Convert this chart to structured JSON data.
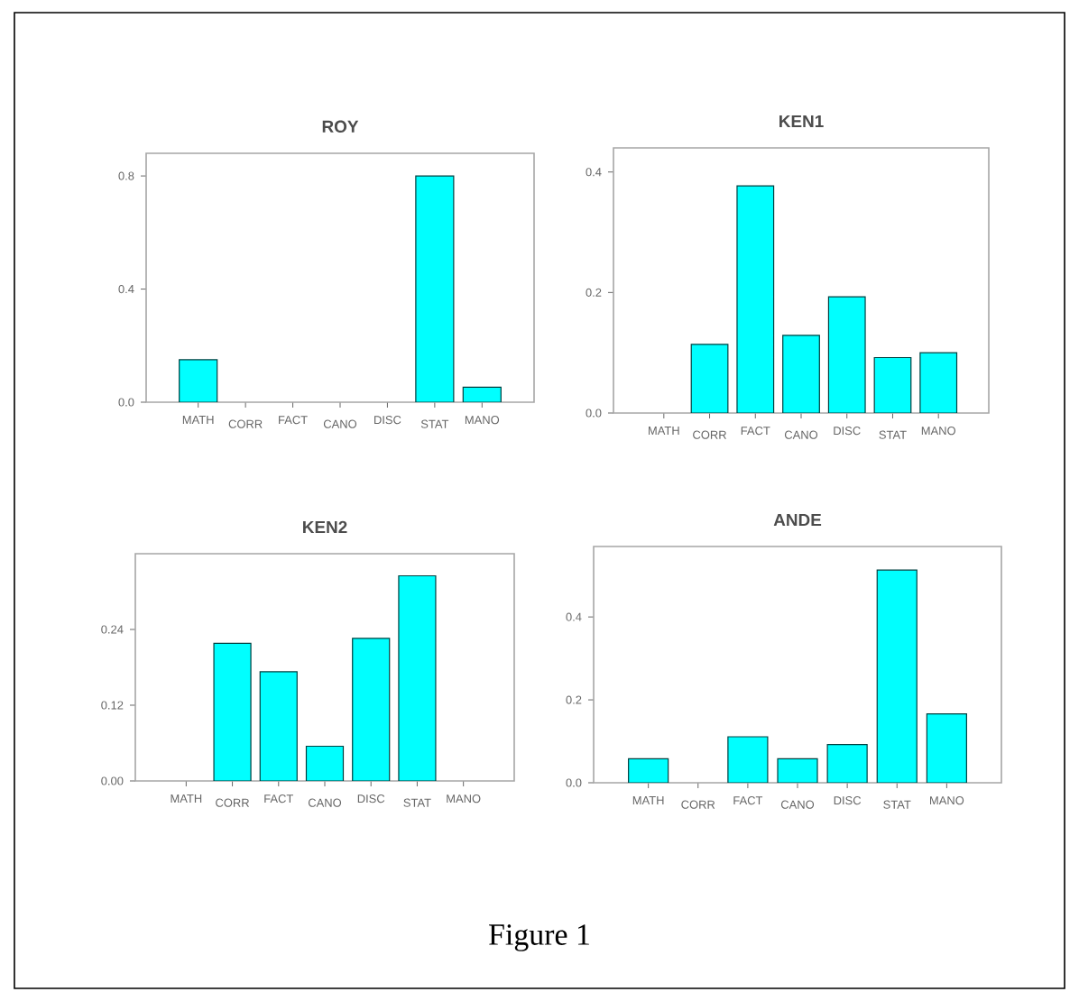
{
  "chart_data": [
    {
      "type": "bar",
      "title": "ROY",
      "categories": [
        "MATH",
        "CORR",
        "FACT",
        "CANO",
        "DISC",
        "STAT",
        "MANO"
      ],
      "values": [
        0.15,
        0,
        0,
        0,
        0,
        0.8,
        0.053
      ],
      "color": "#00ffff",
      "ylim": [
        0,
        0.88
      ],
      "yticks": [
        {
          "value": 0,
          "label": "0.0"
        },
        {
          "value": 0.4,
          "label": "0.4"
        },
        {
          "value": 0.8,
          "label": "0.8"
        }
      ]
    },
    {
      "type": "bar",
      "title": "KEN1",
      "categories": [
        "MATH",
        "CORR",
        "FACT",
        "CANO",
        "DISC",
        "STAT",
        "MANO"
      ],
      "values": [
        0,
        0.114,
        0.377,
        0.129,
        0.193,
        0.092,
        0.1
      ],
      "color": "#00ffff",
      "ylim": [
        0,
        0.44
      ],
      "yticks": [
        {
          "value": 0,
          "label": "0.0"
        },
        {
          "value": 0.2,
          "label": "0.2"
        },
        {
          "value": 0.4,
          "label": "0.4"
        }
      ]
    },
    {
      "type": "bar",
      "title": "KEN2",
      "categories": [
        "MATH",
        "CORR",
        "FACT",
        "CANO",
        "DISC",
        "STAT",
        "MANO"
      ],
      "values": [
        0,
        0.218,
        0.173,
        0.055,
        0.226,
        0.325,
        0
      ],
      "color": "#00ffff",
      "ylim": [
        0,
        0.36
      ],
      "yticks": [
        {
          "value": 0,
          "label": "0.00"
        },
        {
          "value": 0.12,
          "label": "0.12"
        },
        {
          "value": 0.24,
          "label": "0.24"
        }
      ]
    },
    {
      "type": "bar",
      "title": "ANDE",
      "categories": [
        "MATH",
        "CORR",
        "FACT",
        "CANO",
        "DISC",
        "STAT",
        "MANO"
      ],
      "values": [
        0.058,
        0,
        0.111,
        0.058,
        0.092,
        0.513,
        0.166
      ],
      "color": "#00ffff",
      "ylim": [
        0,
        0.57
      ],
      "yticks": [
        {
          "value": 0,
          "label": "0.0"
        },
        {
          "value": 0.2,
          "label": "0.2"
        },
        {
          "value": 0.4,
          "label": "0.4"
        }
      ],
      "annotations": [
        "Figure 1"
      ]
    }
  ]
}
